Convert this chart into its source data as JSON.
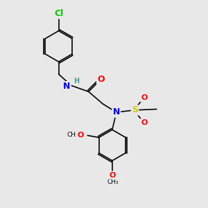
{
  "background_color": "#e8e8e8",
  "bond_color": "#000000",
  "atom_colors": {
    "N": "#0000ff",
    "O": "#ff0000",
    "S": "#cccc00",
    "Cl": "#00cc00",
    "H": "#4a9a9a",
    "C": "#000000"
  },
  "font_size_atoms": 9,
  "font_size_labels": 8,
  "fig_width": 3.0,
  "fig_height": 3.0,
  "dpi": 100
}
